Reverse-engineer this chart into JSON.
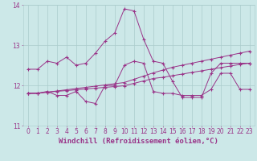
{
  "xlabel": "Windchill (Refroidissement éolien,°C)",
  "xlim": [
    -0.5,
    23.5
  ],
  "ylim": [
    11,
    14
  ],
  "yticks": [
    11,
    12,
    13,
    14
  ],
  "xticks": [
    0,
    1,
    2,
    3,
    4,
    5,
    6,
    7,
    8,
    9,
    10,
    11,
    12,
    13,
    14,
    15,
    16,
    17,
    18,
    19,
    20,
    21,
    22,
    23
  ],
  "bg_color": "#cce8e8",
  "grid_color": "#aacccc",
  "line_color": "#993388",
  "series": [
    [
      12.4,
      12.4,
      12.6,
      12.55,
      12.7,
      12.5,
      12.55,
      12.8,
      13.1,
      13.3,
      13.9,
      13.85,
      13.15,
      12.6,
      12.55,
      12.1,
      11.7,
      11.7,
      11.7,
      12.3,
      12.55,
      12.55,
      12.55,
      12.55
    ],
    [
      11.8,
      11.8,
      11.85,
      11.75,
      11.75,
      11.85,
      11.6,
      11.55,
      12.0,
      12.0,
      12.5,
      12.6,
      12.55,
      11.85,
      11.8,
      11.8,
      11.75,
      11.75,
      11.75,
      11.9,
      12.3,
      12.3,
      11.9,
      11.9
    ],
    [
      11.8,
      11.8,
      11.83,
      11.86,
      11.89,
      11.92,
      11.95,
      11.98,
      12.01,
      12.04,
      12.07,
      12.15,
      12.23,
      12.31,
      12.38,
      12.45,
      12.5,
      12.55,
      12.6,
      12.65,
      12.7,
      12.75,
      12.8,
      12.85
    ],
    [
      11.8,
      11.81,
      11.83,
      11.85,
      11.87,
      11.89,
      11.91,
      11.93,
      11.95,
      11.97,
      11.99,
      12.05,
      12.11,
      12.17,
      12.2,
      12.24,
      12.28,
      12.32,
      12.36,
      12.4,
      12.44,
      12.48,
      12.52,
      12.55
    ]
  ],
  "font_color": "#993388",
  "tick_fontsize": 5.5,
  "xlabel_fontsize": 6.5,
  "linewidth": 0.7,
  "markersize": 2.5
}
